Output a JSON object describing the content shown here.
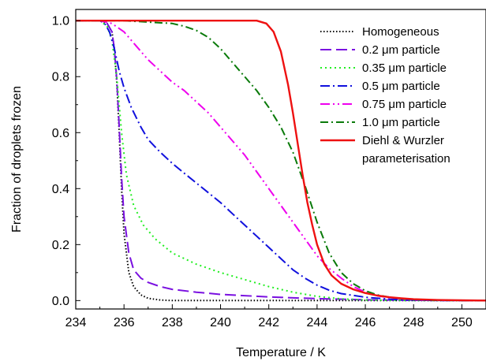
{
  "chart_data": {
    "type": "line",
    "xlabel": "Temperature / K",
    "ylabel": "Fraction of droplets frozen",
    "xlim": [
      234,
      251
    ],
    "ylim": [
      -0.03,
      1.04
    ],
    "xticks": [
      234,
      236,
      238,
      240,
      242,
      244,
      246,
      248,
      250
    ],
    "yticks": [
      0.0,
      0.2,
      0.4,
      0.6,
      0.8,
      1.0
    ],
    "ytick_labels": [
      "0.0",
      "0.2",
      "0.4",
      "0.6",
      "0.8",
      "1.0"
    ],
    "grid": false,
    "legend_position": "top-right",
    "series": [
      {
        "name": "Homogeneous",
        "color": "#000000",
        "dash": "1.5,2.5",
        "x": [
          234,
          235.0,
          235.3,
          235.5,
          235.6,
          235.7,
          235.8,
          235.9,
          236.0,
          236.2,
          236.4,
          236.7,
          237.0,
          237.5,
          238.0,
          240,
          245,
          251
        ],
        "y": [
          1.0,
          1.0,
          0.99,
          0.96,
          0.9,
          0.78,
          0.6,
          0.4,
          0.24,
          0.1,
          0.05,
          0.02,
          0.008,
          0.002,
          0.0,
          0.0,
          0.0,
          0.0
        ]
      },
      {
        "name": "0.2 μm particle",
        "color": "#7a10e0",
        "dash": "14,6",
        "x": [
          234,
          235.0,
          235.3,
          235.5,
          235.6,
          235.7,
          235.8,
          235.9,
          236.0,
          236.2,
          236.4,
          236.7,
          237.0,
          237.5,
          238.0,
          239.0,
          240.0,
          242.0,
          244.0,
          246.0,
          248.0,
          251.0
        ],
        "y": [
          1.0,
          1.0,
          0.99,
          0.96,
          0.9,
          0.79,
          0.62,
          0.44,
          0.3,
          0.17,
          0.11,
          0.08,
          0.065,
          0.05,
          0.04,
          0.03,
          0.022,
          0.013,
          0.007,
          0.003,
          0.001,
          0.0
        ]
      },
      {
        "name": "0.35 μm particle",
        "color": "#22ee22",
        "dash": "2,4",
        "x": [
          234,
          235.0,
          235.3,
          235.5,
          235.7,
          235.9,
          236.1,
          236.4,
          236.8,
          237.3,
          238.0,
          239.0,
          240.0,
          241.0,
          242.0,
          243.0,
          244.0,
          245.0,
          246.0,
          247.0,
          248.0,
          251.0
        ],
        "y": [
          1.0,
          1.0,
          0.98,
          0.93,
          0.8,
          0.6,
          0.45,
          0.34,
          0.27,
          0.22,
          0.17,
          0.13,
          0.1,
          0.075,
          0.05,
          0.03,
          0.015,
          0.006,
          0.002,
          0.001,
          0.0,
          0.0
        ]
      },
      {
        "name": "0.5 μm particle",
        "color": "#1010dd",
        "dash": "12,4,2,4",
        "x": [
          234,
          235.0,
          235.2,
          235.4,
          235.6,
          235.8,
          236.0,
          236.3,
          236.7,
          237.0,
          237.5,
          238.0,
          238.5,
          239.0,
          239.5,
          240.0,
          240.5,
          241.0,
          241.5,
          242.0,
          242.5,
          243.0,
          243.5,
          244.0,
          244.5,
          245.0,
          246.0,
          247.0,
          248.0,
          249.0,
          251.0
        ],
        "y": [
          1.0,
          1.0,
          0.99,
          0.96,
          0.9,
          0.82,
          0.76,
          0.69,
          0.62,
          0.575,
          0.53,
          0.49,
          0.455,
          0.42,
          0.385,
          0.35,
          0.31,
          0.27,
          0.23,
          0.19,
          0.15,
          0.11,
          0.08,
          0.055,
          0.037,
          0.025,
          0.012,
          0.005,
          0.002,
          0.0,
          0.0
        ]
      },
      {
        "name": "0.75 μm particle",
        "color": "#ee00ee",
        "dash": "12,4,2,4,2,4",
        "x": [
          234,
          235.0,
          235.5,
          236.0,
          236.5,
          237.0,
          237.5,
          238.0,
          238.5,
          239.0,
          239.5,
          240.0,
          240.5,
          241.0,
          241.5,
          242.0,
          242.5,
          243.0,
          243.5,
          244.0,
          244.5,
          245.0,
          245.5,
          246.0,
          246.5,
          247.0,
          248.0,
          249.0,
          251.0
        ],
        "y": [
          1.0,
          1.0,
          0.99,
          0.96,
          0.91,
          0.86,
          0.82,
          0.78,
          0.75,
          0.71,
          0.67,
          0.62,
          0.57,
          0.52,
          0.46,
          0.4,
          0.34,
          0.28,
          0.22,
          0.16,
          0.115,
          0.08,
          0.05,
          0.03,
          0.017,
          0.01,
          0.004,
          0.001,
          0.0
        ]
      },
      {
        "name": "1.0 μm particle",
        "color": "#0a7a0a",
        "dash": "10,4,2,4",
        "x": [
          234,
          236.0,
          237.0,
          238.0,
          238.5,
          239.0,
          239.5,
          240.0,
          240.5,
          241.0,
          241.5,
          242.0,
          242.5,
          243.0,
          243.5,
          244.0,
          244.5,
          245.0,
          245.5,
          246.0,
          246.5,
          247.0,
          247.5,
          248.0,
          249.0,
          251.0
        ],
        "y": [
          1.0,
          1.0,
          0.995,
          0.99,
          0.98,
          0.965,
          0.94,
          0.9,
          0.85,
          0.8,
          0.75,
          0.69,
          0.62,
          0.53,
          0.41,
          0.28,
          0.17,
          0.1,
          0.06,
          0.035,
          0.02,
          0.012,
          0.007,
          0.004,
          0.001,
          0.0
        ]
      },
      {
        "name": "Diehl & Wurzler parameterisation",
        "color": "#ee1111",
        "dash": "",
        "x": [
          234,
          241.5,
          241.9,
          242.2,
          242.5,
          242.8,
          243.0,
          243.2,
          243.4,
          243.6,
          243.8,
          244.0,
          244.3,
          244.6,
          245.0,
          245.5,
          246.0,
          246.5,
          247.0,
          247.5,
          248.0,
          249.0,
          250.0,
          251.0
        ],
        "y": [
          1.0,
          1.0,
          0.99,
          0.96,
          0.89,
          0.77,
          0.67,
          0.56,
          0.45,
          0.35,
          0.27,
          0.2,
          0.13,
          0.09,
          0.06,
          0.04,
          0.027,
          0.018,
          0.012,
          0.008,
          0.005,
          0.002,
          0.001,
          0.0
        ]
      }
    ],
    "legend_labels": [
      [
        "Homogeneous"
      ],
      [
        "0.2 μm particle"
      ],
      [
        "0.35 μm particle"
      ],
      [
        "0.5 μm particle"
      ],
      [
        "0.75 μm particle"
      ],
      [
        "1.0 μm particle"
      ],
      [
        "Diehl & Wurzler",
        "parameterisation"
      ]
    ]
  }
}
